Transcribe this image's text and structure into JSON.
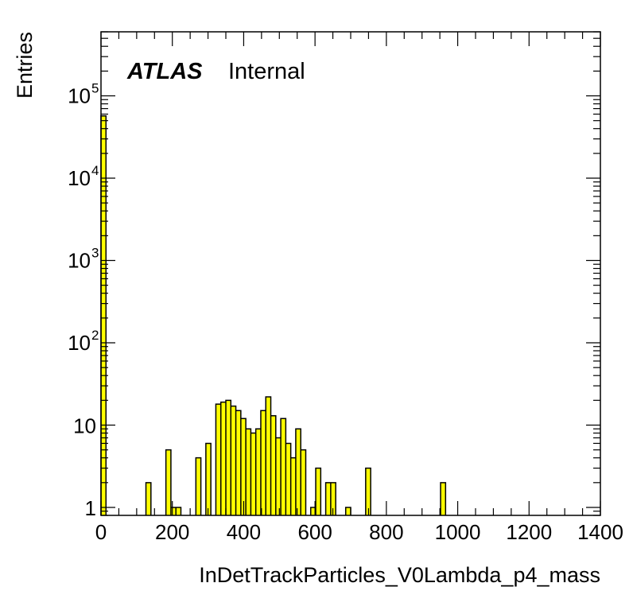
{
  "chart_data": {
    "type": "bar",
    "title": "",
    "xlabel": "InDetTrackParticles_V0Lambda_p4_mass",
    "ylabel": "Entries",
    "label": {
      "experiment": "ATLAS",
      "status": "Internal"
    },
    "xlim": [
      0,
      1400
    ],
    "ylim": [
      0.8,
      600000
    ],
    "yscale": "log",
    "x_ticks": [
      "0",
      "200",
      "400",
      "600",
      "800",
      "1000",
      "1200",
      "1400"
    ],
    "y_ticks": [
      {
        "value": 1,
        "base": "1",
        "exp": ""
      },
      {
        "value": 10,
        "base": "10",
        "exp": ""
      },
      {
        "value": 100,
        "base": "10",
        "exp": "2"
      },
      {
        "value": 1000,
        "base": "10",
        "exp": "3"
      },
      {
        "value": 10000,
        "base": "10",
        "exp": "4"
      },
      {
        "value": 100000,
        "base": "10",
        "exp": "5"
      }
    ],
    "bin_width": 14,
    "bins": [
      {
        "x": 0,
        "y": 57000
      },
      {
        "x": 126,
        "y": 2
      },
      {
        "x": 182,
        "y": 5
      },
      {
        "x": 196,
        "y": 1
      },
      {
        "x": 210,
        "y": 1
      },
      {
        "x": 266,
        "y": 4
      },
      {
        "x": 294,
        "y": 6
      },
      {
        "x": 322,
        "y": 18
      },
      {
        "x": 336,
        "y": 19
      },
      {
        "x": 350,
        "y": 20
      },
      {
        "x": 364,
        "y": 17
      },
      {
        "x": 378,
        "y": 15
      },
      {
        "x": 392,
        "y": 12
      },
      {
        "x": 406,
        "y": 9
      },
      {
        "x": 420,
        "y": 8
      },
      {
        "x": 434,
        "y": 9
      },
      {
        "x": 448,
        "y": 15
      },
      {
        "x": 462,
        "y": 22
      },
      {
        "x": 476,
        "y": 13
      },
      {
        "x": 490,
        "y": 7
      },
      {
        "x": 504,
        "y": 12
      },
      {
        "x": 518,
        "y": 6
      },
      {
        "x": 532,
        "y": 4
      },
      {
        "x": 546,
        "y": 9
      },
      {
        "x": 560,
        "y": 5
      },
      {
        "x": 588,
        "y": 1
      },
      {
        "x": 602,
        "y": 3
      },
      {
        "x": 630,
        "y": 2
      },
      {
        "x": 644,
        "y": 2
      },
      {
        "x": 686,
        "y": 1
      },
      {
        "x": 742,
        "y": 3
      },
      {
        "x": 952,
        "y": 2
      }
    ],
    "colors": {
      "fill": "#ffff00",
      "line": "#000000"
    },
    "grid": false,
    "legend": "none"
  }
}
